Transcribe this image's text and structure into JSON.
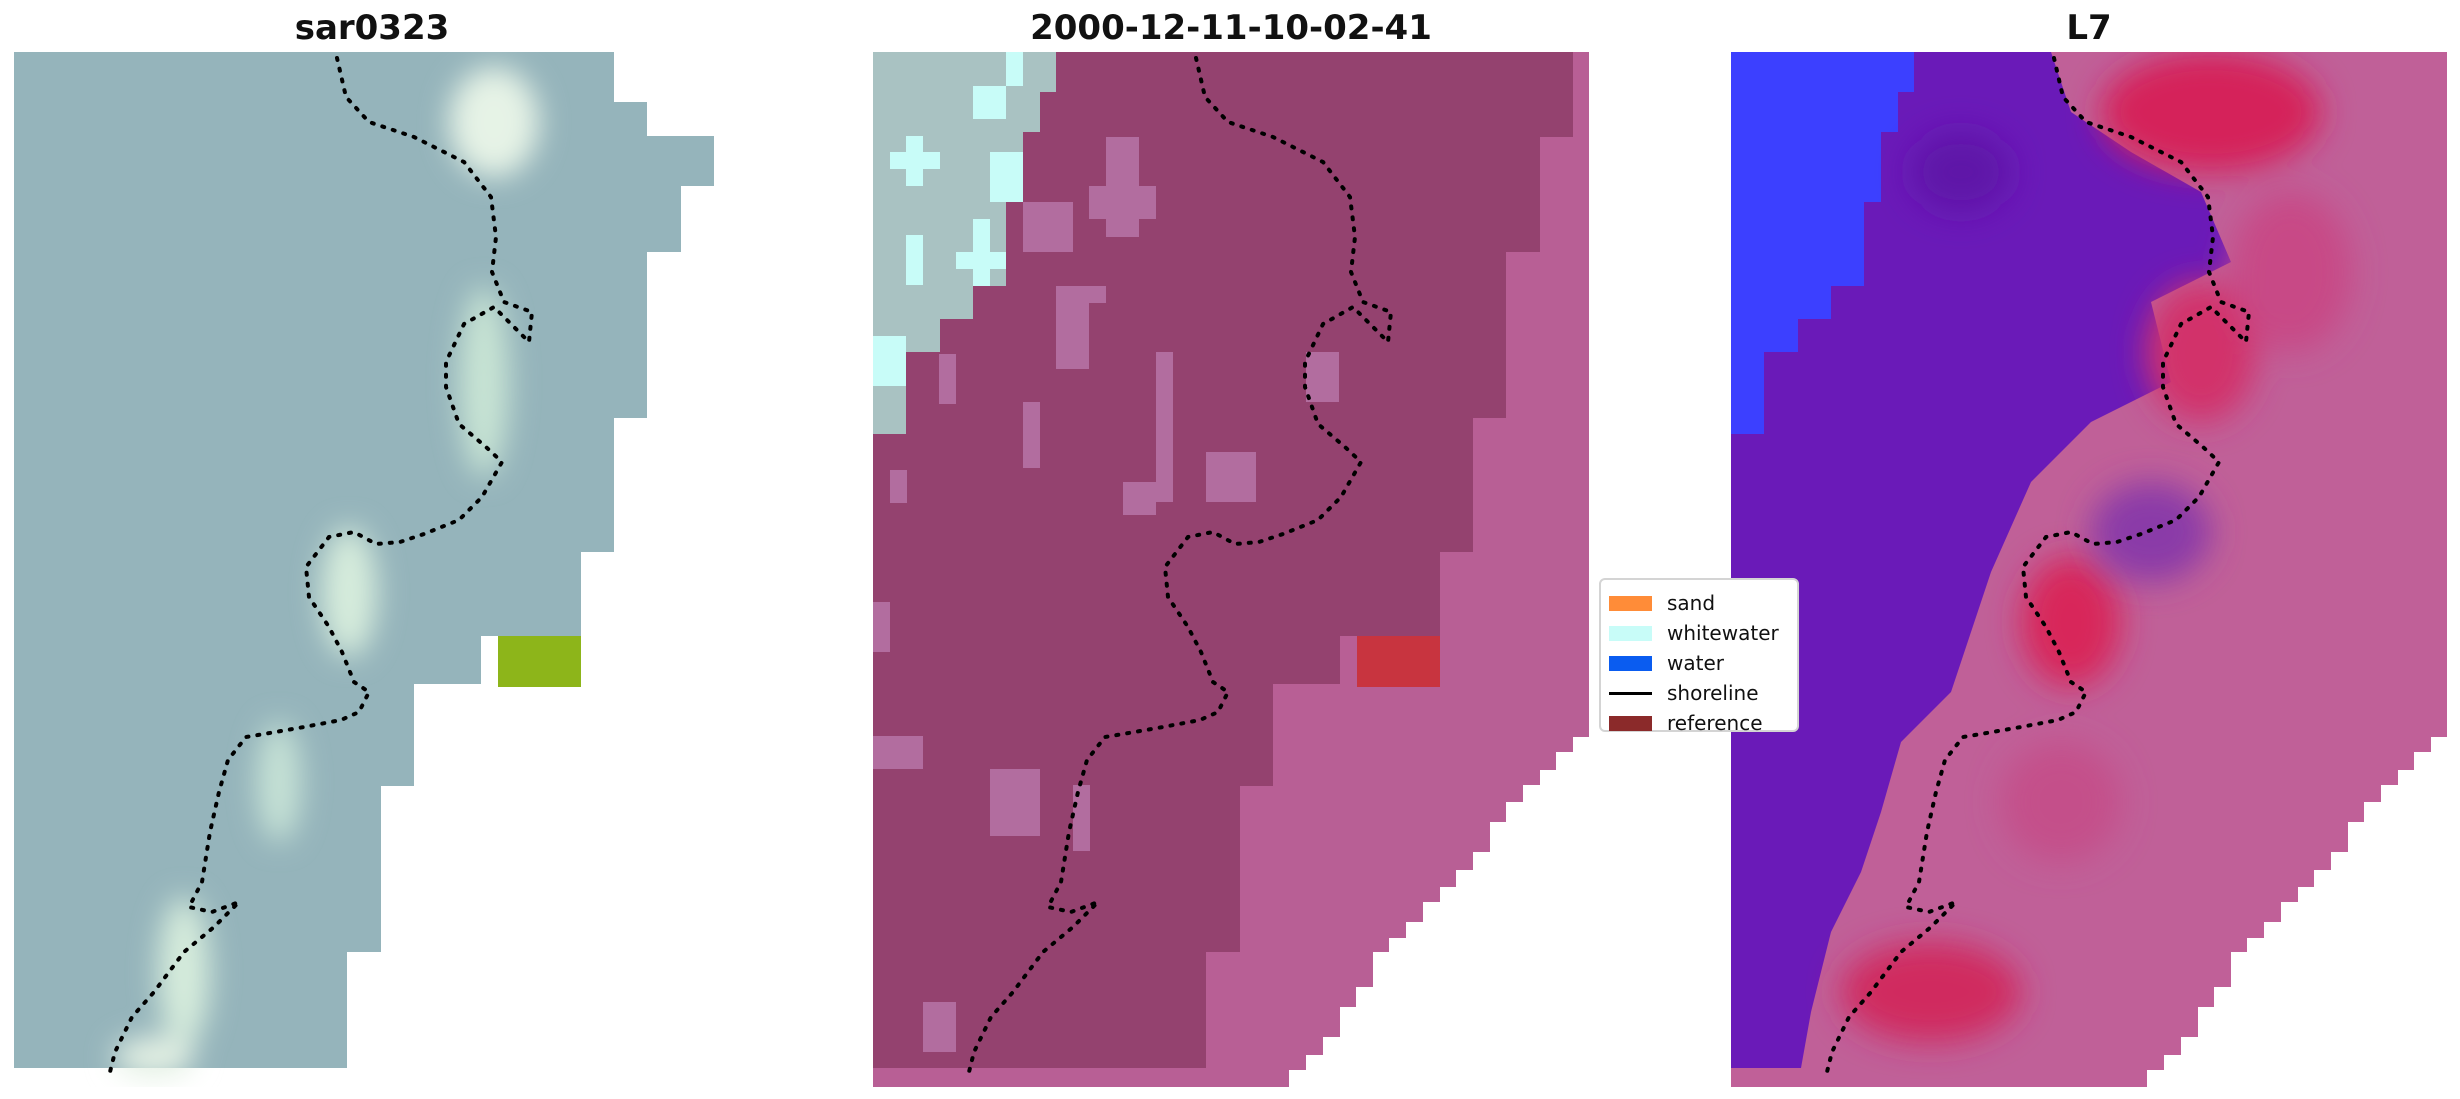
{
  "panels": [
    {
      "title": "sar0323"
    },
    {
      "title": "2000-12-11-10-02-41"
    },
    {
      "title": "L7"
    }
  ],
  "legend": {
    "items": [
      {
        "label": "sand",
        "color": "#ff8c38",
        "kind": "patch"
      },
      {
        "label": "whitewater",
        "color": "#c8fcf8",
        "kind": "patch"
      },
      {
        "label": "water",
        "color": "#0a5cf0",
        "kind": "patch"
      },
      {
        "label": "shoreline",
        "color": "#000000",
        "kind": "line"
      },
      {
        "label": "reference",
        "color": "#8b2a2a",
        "kind": "patch"
      }
    ]
  },
  "colors": {
    "sar_background": "#95b4bb",
    "sar_foam": "#dff0e4",
    "sar_marker": "#8db51a",
    "class_sand_overlay": "#b85f95",
    "class_water_overlay": "#94426f",
    "class_whitewater": "#c8fcf8",
    "class_marker": "#c8343f",
    "prob_water": "#6a1ab8",
    "prob_ocean_blue": "#3c40ff",
    "prob_sand_red": "#d23060",
    "prob_pink": "#c06098"
  }
}
